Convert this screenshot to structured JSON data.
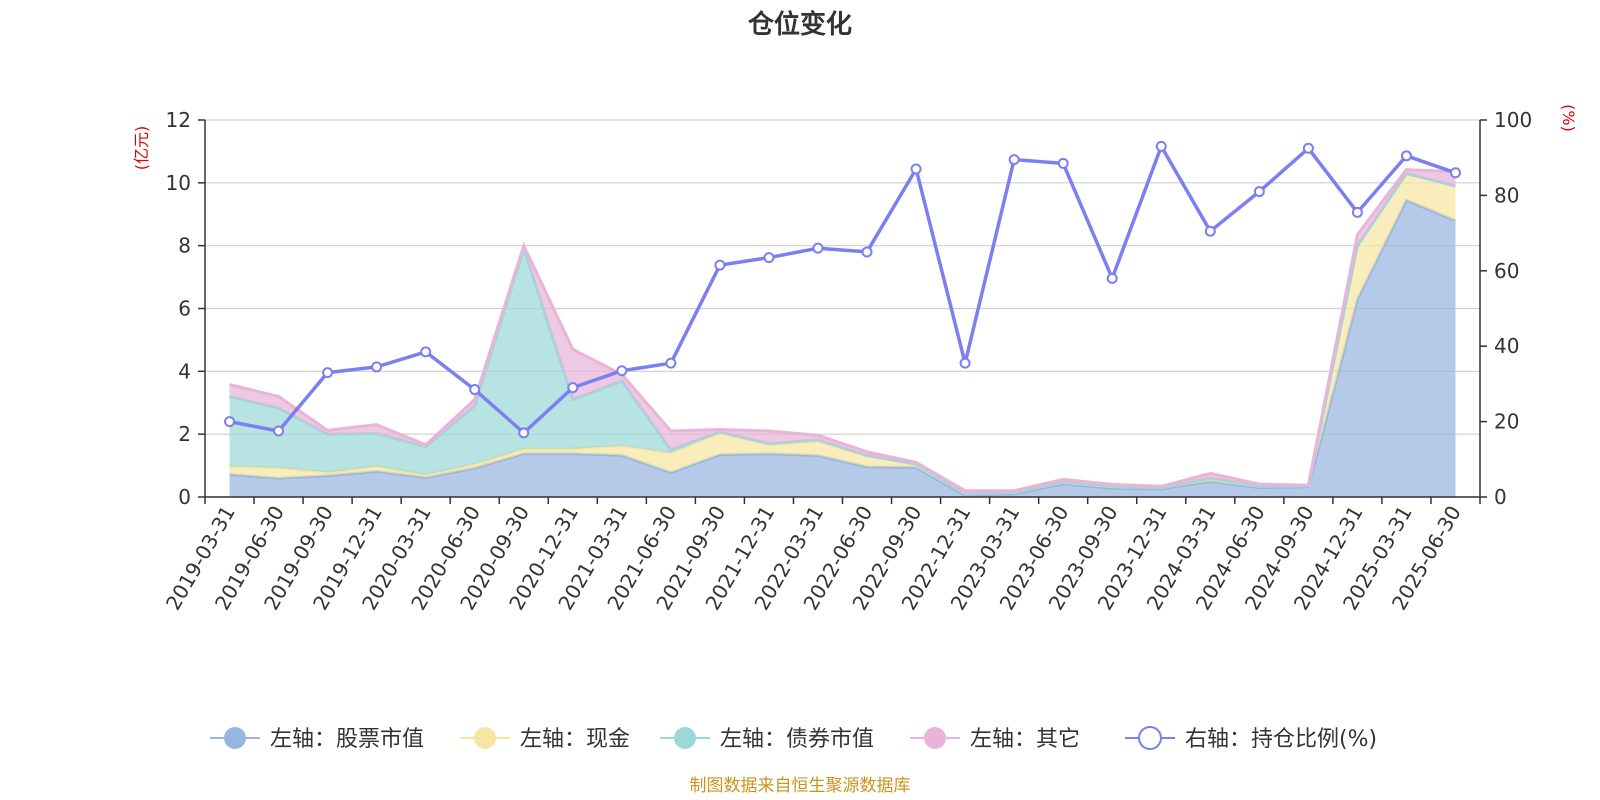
{
  "chart_data": {
    "type": "area",
    "title": "仓位变化",
    "left_axis_unit": "(亿元)",
    "right_axis_unit": "(%)",
    "left_ylim": [
      0,
      12
    ],
    "left_yticks": [
      "0",
      "2",
      "4",
      "6",
      "8",
      "10",
      "12"
    ],
    "right_ylim": [
      0,
      100
    ],
    "right_yticks": [
      "0",
      "20",
      "40",
      "60",
      "80",
      "100"
    ],
    "grid": true,
    "legend_position": "bottom",
    "categories": [
      "2019-03-31",
      "2019-06-30",
      "2019-09-30",
      "2019-12-31",
      "2020-03-31",
      "2020-06-30",
      "2020-09-30",
      "2020-12-31",
      "2021-03-31",
      "2021-06-30",
      "2021-09-30",
      "2021-12-31",
      "2022-03-31",
      "2022-06-30",
      "2022-09-30",
      "2022-12-31",
      "2023-03-31",
      "2023-06-30",
      "2023-09-30",
      "2023-12-31",
      "2024-03-31",
      "2024-06-30",
      "2024-09-30",
      "2024-12-31",
      "2025-03-31",
      "2025-06-30"
    ],
    "stacked_series": [
      {
        "name": "左轴：股票市值",
        "axis": "left",
        "color": "#98b5e0",
        "values": [
          0.72,
          0.6,
          0.68,
          0.82,
          0.62,
          0.92,
          1.38,
          1.38,
          1.33,
          0.78,
          1.35,
          1.38,
          1.32,
          0.96,
          0.95,
          0.05,
          0.1,
          0.42,
          0.28,
          0.26,
          0.5,
          0.3,
          0.33,
          6.3,
          9.45,
          8.8
        ]
      },
      {
        "name": "左轴：现金",
        "axis": "left",
        "color": "#f6e6a2",
        "values": [
          0.25,
          0.33,
          0.1,
          0.15,
          0.08,
          0.12,
          0.15,
          0.15,
          0.3,
          0.62,
          0.7,
          0.28,
          0.45,
          0.36,
          0.1,
          0.05,
          0.05,
          0.07,
          0.06,
          0.04,
          0.1,
          0.06,
          0.02,
          1.7,
          0.85,
          1.1
        ]
      },
      {
        "name": "左轴：债券市值",
        "axis": "left",
        "color": "#9dd8d8",
        "values": [
          2.23,
          1.9,
          1.22,
          1.05,
          0.9,
          1.86,
          6.37,
          1.57,
          2.07,
          0.1,
          0.02,
          0.04,
          0.05,
          0.0,
          0.0,
          0.0,
          0.0,
          0.0,
          0.0,
          0.0,
          0.0,
          0.0,
          0.0,
          0.0,
          0.0,
          0.0
        ]
      },
      {
        "name": "左轴：其它",
        "axis": "left",
        "color": "#e8b4d8",
        "values": [
          0.38,
          0.37,
          0.12,
          0.28,
          0.06,
          0.2,
          0.1,
          1.6,
          0.2,
          0.6,
          0.08,
          0.4,
          0.14,
          0.12,
          0.05,
          0.1,
          0.05,
          0.07,
          0.06,
          0.04,
          0.15,
          0.05,
          0.03,
          0.35,
          0.12,
          0.45
        ]
      }
    ],
    "line_series": {
      "name": "右轴：持仓比例(%)",
      "axis": "right",
      "color": "#7b7ff0",
      "values": [
        20,
        17.5,
        33,
        34.5,
        38.5,
        28.5,
        17,
        29,
        33.5,
        35.5,
        61.5,
        63.5,
        66,
        65,
        87,
        35.5,
        89.5,
        88.5,
        58,
        93,
        70.5,
        81,
        92.5,
        75.5,
        90.5,
        86
      ]
    },
    "source_note": "制图数据来自恒生聚源数据库"
  }
}
